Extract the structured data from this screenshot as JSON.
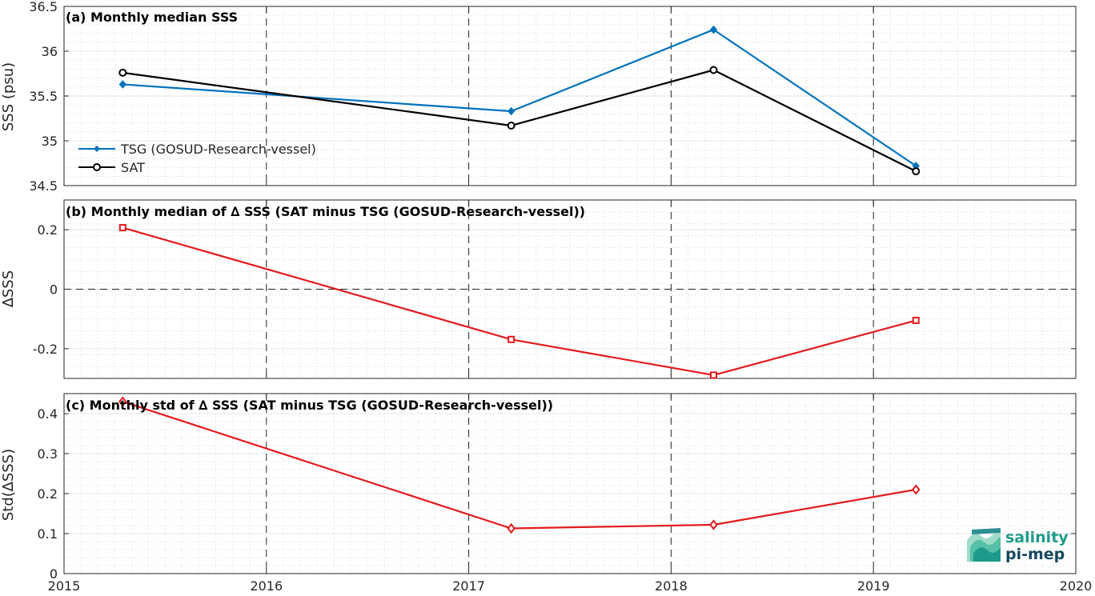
{
  "chart_data": [
    {
      "type": "line",
      "title": "(a) Monthly median SSS",
      "xlabel": "",
      "ylabel": "SSS (psu)",
      "xlim": [
        2015,
        2020
      ],
      "ylim": [
        34.5,
        36.5
      ],
      "yticks": [
        34.5,
        35,
        35.5,
        36,
        36.5
      ],
      "ytick_labels": [
        "34.5",
        "35",
        "35.5",
        "36",
        "36.5"
      ],
      "grid": true,
      "legend_position": "bottom-left",
      "series": [
        {
          "name": "TSG (GOSUD-Research-vessel)",
          "color": "#0072bd",
          "marker": "diamond-filled",
          "x": [
            2015.29,
            2017.21,
            2018.21,
            2019.21
          ],
          "values": [
            35.63,
            35.33,
            36.24,
            34.72
          ]
        },
        {
          "name": "SAT",
          "color": "#000000",
          "marker": "circle",
          "x": [
            2015.29,
            2017.21,
            2018.21,
            2019.21
          ],
          "values": [
            35.76,
            35.17,
            35.79,
            34.66
          ]
        }
      ]
    },
    {
      "type": "line",
      "title": "(b) Monthly median of ∆ SSS (SAT minus TSG (GOSUD-Research-vessel))",
      "xlabel": "",
      "ylabel": "∆SSS",
      "xlim": [
        2015,
        2020
      ],
      "ylim": [
        -0.3,
        0.3
      ],
      "yticks": [
        -0.2,
        0,
        0.2
      ],
      "ytick_labels": [
        "-0.2",
        "0",
        "0.2"
      ],
      "grid": true,
      "zero_line": "dashed",
      "series": [
        {
          "color": "#e31a1c",
          "marker": "square",
          "x": [
            2015.29,
            2017.21,
            2018.21,
            2019.21
          ],
          "values": [
            0.207,
            -0.169,
            -0.289,
            -0.105
          ]
        }
      ]
    },
    {
      "type": "line",
      "title": "(c) Monthly std of ∆ SSS (SAT minus TSG (GOSUD-Research-vessel))",
      "xlabel": "",
      "ylabel": "Std(∆SSS)",
      "xlim": [
        2015,
        2020
      ],
      "xticks": [
        2015,
        2016,
        2017,
        2018,
        2019,
        2020
      ],
      "xtick_labels": [
        "2015",
        "2016",
        "2017",
        "2018",
        "2019",
        "2020"
      ],
      "ylim": [
        0,
        0.45
      ],
      "yticks": [
        0,
        0.1,
        0.2,
        0.3,
        0.4
      ],
      "ytick_labels": [
        "0",
        "0.1",
        "0.2",
        "0.3",
        "0.4"
      ],
      "grid": true,
      "series": [
        {
          "color": "#e31a1c",
          "marker": "diamond",
          "x": [
            2015.29,
            2017.21,
            2018.21,
            2019.21
          ],
          "values": [
            0.43,
            0.113,
            0.122,
            0.21
          ]
        }
      ]
    }
  ],
  "logo": {
    "line1": "salinity",
    "line2": "pi-mep"
  }
}
